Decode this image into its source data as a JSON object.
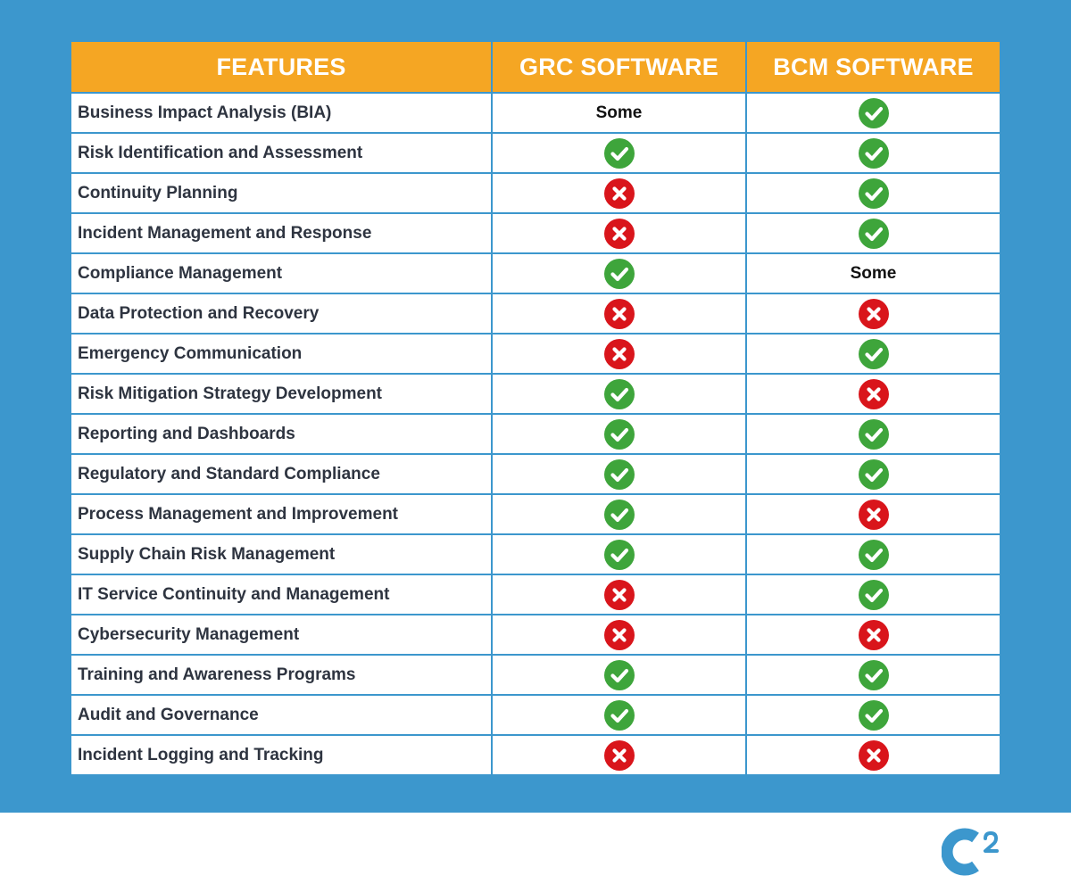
{
  "table": {
    "headers": [
      "FEATURES",
      "GRC SOFTWARE",
      "BCM SOFTWARE"
    ],
    "rows": [
      {
        "feature": "Business Impact Analysis (BIA)",
        "grc": "Some",
        "bcm": "yes"
      },
      {
        "feature": "Risk Identification and Assessment",
        "grc": "yes",
        "bcm": "yes"
      },
      {
        "feature": "Continuity Planning",
        "grc": "no",
        "bcm": "yes"
      },
      {
        "feature": "Incident Management and Response",
        "grc": "no",
        "bcm": "yes"
      },
      {
        "feature": "Compliance Management",
        "grc": "yes",
        "bcm": "Some"
      },
      {
        "feature": "Data Protection and Recovery",
        "grc": "no",
        "bcm": "no"
      },
      {
        "feature": "Emergency Communication",
        "grc": "no",
        "bcm": "yes"
      },
      {
        "feature": "Risk Mitigation Strategy Development",
        "grc": "yes",
        "bcm": "no"
      },
      {
        "feature": "Reporting and Dashboards",
        "grc": "yes",
        "bcm": "yes"
      },
      {
        "feature": "Regulatory and Standard Compliance",
        "grc": "yes",
        "bcm": "yes"
      },
      {
        "feature": "Process Management and Improvement",
        "grc": "yes",
        "bcm": "no"
      },
      {
        "feature": "Supply Chain Risk Management",
        "grc": "yes",
        "bcm": "yes"
      },
      {
        "feature": "IT Service Continuity and Management",
        "grc": "no",
        "bcm": "yes"
      },
      {
        "feature": "Cybersecurity Management",
        "grc": "no",
        "bcm": "no"
      },
      {
        "feature": "Training and Awareness Programs",
        "grc": "yes",
        "bcm": "yes"
      },
      {
        "feature": "Audit and Governance",
        "grc": "yes",
        "bcm": "yes"
      },
      {
        "feature": "Incident Logging and Tracking",
        "grc": "no",
        "bcm": "no"
      }
    ]
  },
  "icons": {
    "yes": "check-icon",
    "no": "cross-icon"
  },
  "logo": {
    "icon": "c2-logo-icon",
    "text": "C2"
  },
  "colors": {
    "background_band": "#3c97cd",
    "header_fill": "#f5a623",
    "header_text": "#ffffff",
    "check_green": "#3ea53b",
    "cross_red": "#d9151b",
    "logo_blue": "#3c97cd"
  }
}
